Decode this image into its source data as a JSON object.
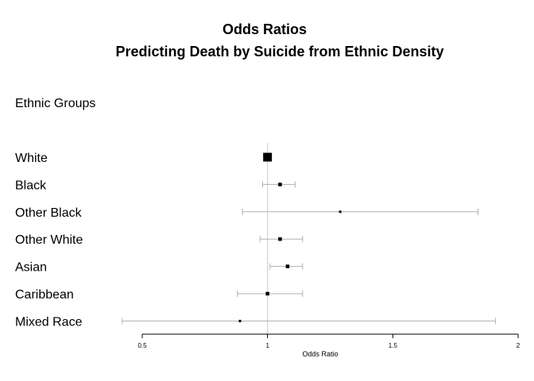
{
  "chart_data": {
    "type": "forest",
    "title_line1": "Odds Ratios",
    "title_line2": "Predicting Death by Suicide from Ethnic Density",
    "column_header": "Ethnic Groups",
    "xlabel": "Odds Ratio",
    "xlim": [
      0.5,
      2
    ],
    "xticks": [
      "0.5",
      "1",
      "1.5",
      "2"
    ],
    "reference_value": 1,
    "rows": [
      {
        "label": "White",
        "estimate": 1.0,
        "lower": null,
        "upper": null,
        "reference": true
      },
      {
        "label": "Black",
        "estimate": 1.05,
        "lower": 0.98,
        "upper": 1.11
      },
      {
        "label": "Other Black",
        "estimate": 1.29,
        "lower": 0.9,
        "upper": 1.84
      },
      {
        "label": "Other White",
        "estimate": 1.05,
        "lower": 0.97,
        "upper": 1.14
      },
      {
        "label": "Asian",
        "estimate": 1.08,
        "lower": 1.01,
        "upper": 1.14
      },
      {
        "label": "Caribbean",
        "estimate": 1.0,
        "lower": 0.88,
        "upper": 1.14
      },
      {
        "label": "Mixed Race",
        "estimate": 0.89,
        "lower": 0.42,
        "upper": 1.91
      }
    ],
    "colors": {
      "ci_line": "#b0b0b0",
      "marker": "#000000",
      "axis": "#000000",
      "reference_line": "#c8c8c8"
    }
  }
}
